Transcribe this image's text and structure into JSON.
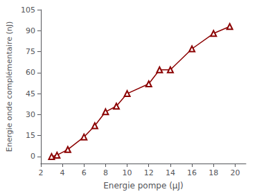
{
  "chart_data": {
    "type": "line",
    "x": [
      3.0,
      3.5,
      4.5,
      6.0,
      7.0,
      8.0,
      9.0,
      10.0,
      12.0,
      13.0,
      14.0,
      16.0,
      18.0,
      19.5
    ],
    "values": [
      0,
      1,
      5,
      14,
      22,
      32,
      36,
      45,
      52,
      62,
      62,
      77,
      88,
      93
    ],
    "color": "#8B0000",
    "marker": "triangle",
    "xlabel": "Energie pompe (μJ)",
    "ylabel": "Energie onde complémentaire (nJ)",
    "xlim": [
      2,
      21
    ],
    "ylim": [
      -5,
      105
    ],
    "xticks": [
      2,
      4,
      6,
      8,
      10,
      12,
      14,
      16,
      18,
      20
    ],
    "yticks": [
      0,
      15,
      30,
      45,
      60,
      75,
      90,
      105
    ],
    "grid": false
  }
}
